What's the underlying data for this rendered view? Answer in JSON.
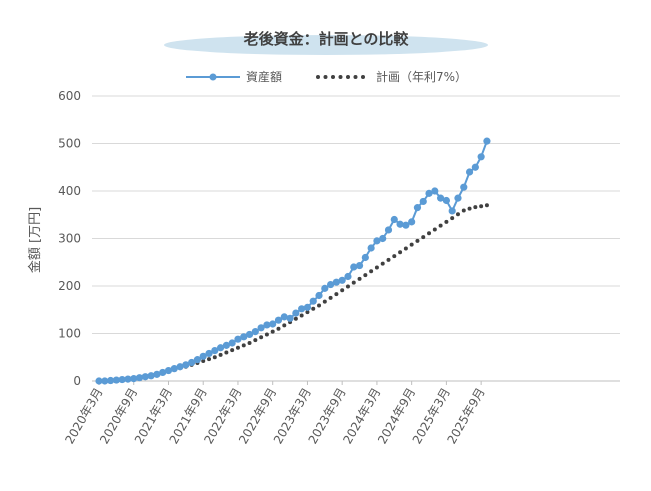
{
  "chart_data": {
    "type": "line",
    "title": "老後資金：計画との比較",
    "ylabel": "金額 [万円]",
    "xlabel": "",
    "ylim": [
      0,
      600
    ],
    "yticks": [
      0,
      100,
      200,
      300,
      400,
      500,
      600
    ],
    "grid": true,
    "legend_position": "top",
    "x_tick_labels": [
      "2020年3月",
      "2020年9月",
      "2021年3月",
      "2021年9月",
      "2022年3月",
      "2022年9月",
      "2023年3月",
      "2023年9月",
      "2024年3月",
      "2024年9月",
      "2025年3月",
      "2025年9月"
    ],
    "x": [
      "2020-03",
      "2020-04",
      "2020-05",
      "2020-06",
      "2020-07",
      "2020-08",
      "2020-09",
      "2020-10",
      "2020-11",
      "2020-12",
      "2021-01",
      "2021-02",
      "2021-03",
      "2021-04",
      "2021-05",
      "2021-06",
      "2021-07",
      "2021-08",
      "2021-09",
      "2021-10",
      "2021-11",
      "2021-12",
      "2022-01",
      "2022-02",
      "2022-03",
      "2022-04",
      "2022-05",
      "2022-06",
      "2022-07",
      "2022-08",
      "2022-09",
      "2022-10",
      "2022-11",
      "2022-12",
      "2023-01",
      "2023-02",
      "2023-03",
      "2023-04",
      "2023-05",
      "2023-06",
      "2023-07",
      "2023-08",
      "2023-09",
      "2023-10",
      "2023-11",
      "2023-12",
      "2024-01",
      "2024-02",
      "2024-03",
      "2024-04",
      "2024-05",
      "2024-06",
      "2024-07",
      "2024-08",
      "2024-09",
      "2024-10",
      "2024-11",
      "2024-12",
      "2025-01",
      "2025-02",
      "2025-03",
      "2025-04",
      "2025-05",
      "2025-06",
      "2025-07",
      "2025-08",
      "2025-09",
      "2025-10"
    ],
    "series": [
      {
        "name": "資産額",
        "color": "#5b9bd5",
        "style": "line-marker",
        "values": [
          0,
          0,
          1,
          2,
          3,
          4,
          5,
          7,
          9,
          11,
          14,
          18,
          22,
          26,
          30,
          34,
          39,
          45,
          52,
          58,
          64,
          70,
          75,
          80,
          88,
          93,
          98,
          104,
          112,
          118,
          120,
          128,
          135,
          132,
          143,
          152,
          155,
          168,
          180,
          195,
          203,
          208,
          212,
          220,
          240,
          243,
          260,
          280,
          295,
          300,
          318,
          340,
          330,
          328,
          335,
          365,
          378,
          395,
          400,
          385,
          380,
          358,
          385,
          408,
          440,
          450,
          472,
          505
        ]
      },
      {
        "name": "計画（年利7%）",
        "color": "#404040",
        "style": "dotted",
        "values": [
          0,
          1,
          2,
          3,
          4,
          5,
          6,
          8,
          10,
          12,
          15,
          18,
          21,
          24,
          27,
          30,
          34,
          38,
          42,
          46,
          50,
          55,
          60,
          65,
          70,
          75,
          80,
          86,
          92,
          98,
          104,
          110,
          117,
          124,
          131,
          138,
          145,
          152,
          159,
          167,
          175,
          183,
          191,
          199,
          207,
          215,
          223,
          231,
          239,
          247,
          255,
          263,
          271,
          279,
          287,
          295,
          303,
          311,
          319,
          327,
          335,
          343,
          351,
          359,
          363,
          366,
          368,
          370
        ]
      }
    ]
  }
}
